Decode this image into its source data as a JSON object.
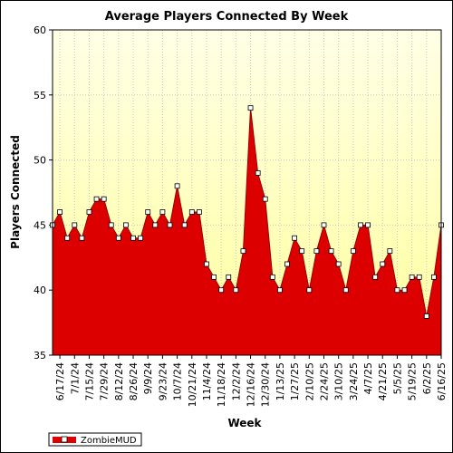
{
  "chart_data": {
    "type": "area",
    "title": "Average Players Connected By Week",
    "xlabel": "Week",
    "ylabel": "Players Connected",
    "ylim": [
      35,
      60
    ],
    "y_ticks": [
      35,
      40,
      45,
      50,
      55,
      60
    ],
    "grid": true,
    "legend_placement": "bottom-left",
    "x_tick_labels": [
      "6/17/24",
      "7/1/24",
      "7/15/24",
      "7/29/24",
      "8/12/24",
      "8/26/24",
      "9/9/24",
      "9/23/24",
      "10/7/24",
      "10/21/24",
      "11/4/24",
      "11/18/24",
      "12/2/24",
      "12/16/24",
      "12/30/24",
      "1/13/25",
      "1/27/25",
      "2/10/25",
      "2/24/25",
      "3/10/25",
      "3/24/25",
      "4/7/25",
      "4/21/25",
      "5/5/25",
      "5/19/25",
      "6/2/25",
      "6/16/25"
    ],
    "x": [
      "6/10/24",
      "6/17/24",
      "6/24/24",
      "7/1/24",
      "7/8/24",
      "7/15/24",
      "7/22/24",
      "7/29/24",
      "8/5/24",
      "8/12/24",
      "8/19/24",
      "8/26/24",
      "9/2/24",
      "9/9/24",
      "9/16/24",
      "9/23/24",
      "9/30/24",
      "10/7/24",
      "10/14/24",
      "10/21/24",
      "10/28/24",
      "11/4/24",
      "11/11/24",
      "11/18/24",
      "11/25/24",
      "12/2/24",
      "12/9/24",
      "12/16/24",
      "12/23/24",
      "12/30/24",
      "1/6/25",
      "1/13/25",
      "1/20/25",
      "1/27/25",
      "2/3/25",
      "2/10/25",
      "2/17/25",
      "2/24/25",
      "3/3/25",
      "3/10/25",
      "3/17/25",
      "3/24/25",
      "3/31/25",
      "4/7/25",
      "4/14/25",
      "4/21/25",
      "4/28/25",
      "5/5/25",
      "5/12/25",
      "5/19/25",
      "5/26/25",
      "6/2/25",
      "6/9/25",
      "6/16/25"
    ],
    "series": [
      {
        "name": "ZombieMUD",
        "color": "#dd0000",
        "values": [
          45,
          46,
          44,
          45,
          44,
          46,
          47,
          47,
          45,
          44,
          45,
          44,
          44,
          46,
          45,
          46,
          45,
          48,
          45,
          46,
          46,
          42,
          41,
          40,
          41,
          40,
          43,
          54,
          49,
          47,
          41,
          40,
          42,
          44,
          43,
          40,
          43,
          45,
          43,
          42,
          40,
          43,
          45,
          45,
          41,
          42,
          43,
          40,
          40,
          41,
          41,
          38,
          41,
          45
        ]
      }
    ]
  }
}
